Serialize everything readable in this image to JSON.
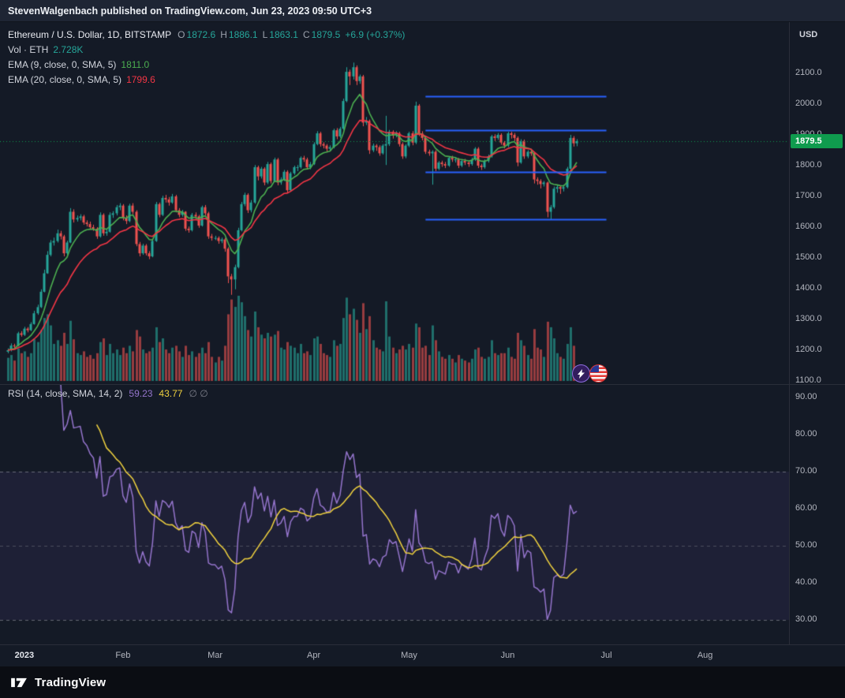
{
  "publish_bar": {
    "text": "StevenWalgenbach published on TradingView.com, Jun 23, 2023 09:50 UTC+3"
  },
  "footer": {
    "brand": "TradingView"
  },
  "current_price_label": "1879.5",
  "legend": {
    "symbol": "Ethereum / U.S. Dollar, 1D, BITSTAMP",
    "ohlc": {
      "o_label": "O",
      "o": "1872.6",
      "h_label": "H",
      "h": "1886.1",
      "l_label": "L",
      "l": "1863.1",
      "c_label": "C",
      "c": "1879.5",
      "change": "+6.9 (+0.37%)"
    },
    "volume": {
      "label": "Vol · ETH",
      "value": "2.728K"
    },
    "ema_fast": {
      "label": "EMA (9, close, 0, SMA, 5)",
      "value": "1811.0"
    },
    "ema_slow": {
      "label": "EMA (20, close, 0, SMA, 5)",
      "value": "1799.6"
    },
    "rsi": {
      "label": "RSI (14, close, SMA, 14, 2)",
      "value": "59.23",
      "sma_value": "43.77",
      "extra": "∅ ∅"
    }
  },
  "axis": {
    "currency": "USD",
    "price_ticks": [
      "2100.0",
      "2000.0",
      "1900.0",
      "1800.0",
      "1700.0",
      "1600.0",
      "1500.0",
      "1400.0",
      "1300.0",
      "1200.0",
      "1100.0"
    ],
    "rsi_ticks": [
      "90.00",
      "80.00",
      "70.00",
      "60.00",
      "50.00",
      "40.00",
      "30.00"
    ],
    "time": [
      {
        "label": "2023",
        "day": 5,
        "year": true
      },
      {
        "label": "Feb",
        "day": 35
      },
      {
        "label": "Mar",
        "day": 63
      },
      {
        "label": "Apr",
        "day": 93
      },
      {
        "label": "May",
        "day": 122
      },
      {
        "label": "Jun",
        "day": 152
      },
      {
        "label": "Jul",
        "day": 182
      },
      {
        "label": "Aug",
        "day": 212
      }
    ]
  },
  "colors": {
    "up": "#26a69a",
    "down": "#ef5350",
    "up_volume": "rgba(38,166,154,0.6)",
    "down_volume": "rgba(239,83,80,0.6)",
    "ema_fast": "#4caf50",
    "ema_slow": "#f23645",
    "level": "#2962ff",
    "price_line": "#0f9b4e",
    "badge_bg": "#0f9b4e",
    "rsi": "#9575cd",
    "rsi_sma": "#f0d23f",
    "rsi_band_fill": "rgba(126,87,194,0.10)",
    "rsi_band_line": "rgba(178,181,190,0.5)",
    "rsi_mid_line": "rgba(120,123,134,0.5)"
  },
  "chart_data": {
    "type": "candlestick",
    "title": "Ethereum / U.S. Dollar, 1D, BITSTAMP",
    "interval": "1D",
    "start_date": "2023-01-01",
    "ylim": [
      1100,
      2100
    ],
    "candle_format": [
      "open",
      "high",
      "low",
      "close",
      "volume_k"
    ],
    "candles": [
      [
        1195,
        1206,
        1190,
        1200,
        25
      ],
      [
        1200,
        1222,
        1196,
        1215,
        28
      ],
      [
        1215,
        1221,
        1208,
        1214,
        22
      ],
      [
        1214,
        1260,
        1212,
        1255,
        35
      ],
      [
        1255,
        1262,
        1244,
        1250,
        30
      ],
      [
        1250,
        1276,
        1246,
        1270,
        32
      ],
      [
        1270,
        1275,
        1258,
        1265,
        26
      ],
      [
        1265,
        1291,
        1262,
        1285,
        30
      ],
      [
        1285,
        1328,
        1283,
        1320,
        45
      ],
      [
        1320,
        1348,
        1315,
        1340,
        42
      ],
      [
        1340,
        1398,
        1337,
        1390,
        55
      ],
      [
        1390,
        1462,
        1388,
        1450,
        68
      ],
      [
        1450,
        1522,
        1448,
        1510,
        72
      ],
      [
        1510,
        1558,
        1505,
        1550,
        60
      ],
      [
        1550,
        1566,
        1540,
        1555,
        40
      ],
      [
        1555,
        1592,
        1550,
        1580,
        44
      ],
      [
        1580,
        1588,
        1560,
        1570,
        38
      ],
      [
        1570,
        1575,
        1505,
        1515,
        52
      ],
      [
        1515,
        1556,
        1510,
        1550,
        40
      ],
      [
        1550,
        1662,
        1548,
        1650,
        65
      ],
      [
        1650,
        1658,
        1615,
        1625,
        45
      ],
      [
        1625,
        1638,
        1618,
        1630,
        30
      ],
      [
        1630,
        1642,
        1622,
        1635,
        28
      ],
      [
        1635,
        1640,
        1608,
        1615,
        32
      ],
      [
        1615,
        1622,
        1602,
        1610,
        26
      ],
      [
        1610,
        1618,
        1592,
        1600,
        28
      ],
      [
        1600,
        1608,
        1588,
        1595,
        24
      ],
      [
        1595,
        1600,
        1562,
        1570,
        30
      ],
      [
        1570,
        1648,
        1566,
        1640,
        42
      ],
      [
        1640,
        1645,
        1572,
        1580,
        46
      ],
      [
        1580,
        1595,
        1572,
        1585,
        28
      ],
      [
        1585,
        1648,
        1582,
        1640,
        40
      ],
      [
        1640,
        1652,
        1630,
        1645,
        30
      ],
      [
        1645,
        1672,
        1638,
        1665,
        34
      ],
      [
        1665,
        1678,
        1655,
        1670,
        28
      ],
      [
        1670,
        1675,
        1622,
        1630,
        36
      ],
      [
        1630,
        1638,
        1610,
        1620,
        30
      ],
      [
        1620,
        1676,
        1616,
        1670,
        38
      ],
      [
        1670,
        1678,
        1642,
        1650,
        32
      ],
      [
        1650,
        1655,
        1538,
        1545,
        55
      ],
      [
        1545,
        1552,
        1505,
        1515,
        48
      ],
      [
        1515,
        1546,
        1510,
        1540,
        34
      ],
      [
        1540,
        1545,
        1508,
        1515,
        30
      ],
      [
        1515,
        1522,
        1496,
        1505,
        32
      ],
      [
        1505,
        1560,
        1502,
        1555,
        36
      ],
      [
        1555,
        1682,
        1552,
        1675,
        58
      ],
      [
        1675,
        1680,
        1632,
        1640,
        42
      ],
      [
        1640,
        1702,
        1636,
        1695,
        46
      ],
      [
        1695,
        1705,
        1680,
        1690,
        34
      ],
      [
        1690,
        1698,
        1670,
        1680,
        30
      ],
      [
        1680,
        1708,
        1676,
        1700,
        36
      ],
      [
        1700,
        1705,
        1648,
        1655,
        38
      ],
      [
        1655,
        1662,
        1632,
        1640,
        32
      ],
      [
        1640,
        1656,
        1634,
        1650,
        26
      ],
      [
        1650,
        1652,
        1588,
        1595,
        38
      ],
      [
        1595,
        1602,
        1582,
        1590,
        28
      ],
      [
        1590,
        1646,
        1586,
        1640,
        32
      ],
      [
        1640,
        1648,
        1626,
        1635,
        26
      ],
      [
        1635,
        1640,
        1598,
        1605,
        30
      ],
      [
        1605,
        1670,
        1602,
        1665,
        36
      ],
      [
        1665,
        1672,
        1638,
        1645,
        30
      ],
      [
        1645,
        1650,
        1562,
        1570,
        42
      ],
      [
        1570,
        1578,
        1556,
        1565,
        26
      ],
      [
        1565,
        1572,
        1558,
        1565,
        20
      ],
      [
        1565,
        1570,
        1546,
        1555,
        26
      ],
      [
        1555,
        1566,
        1548,
        1560,
        22
      ],
      [
        1560,
        1565,
        1520,
        1530,
        38
      ],
      [
        1530,
        1535,
        1418,
        1440,
        72
      ],
      [
        1440,
        1448,
        1380,
        1430,
        88
      ],
      [
        1430,
        1478,
        1398,
        1470,
        80
      ],
      [
        1470,
        1598,
        1466,
        1590,
        92
      ],
      [
        1590,
        1682,
        1586,
        1675,
        85
      ],
      [
        1675,
        1712,
        1668,
        1705,
        70
      ],
      [
        1705,
        1710,
        1646,
        1655,
        55
      ],
      [
        1655,
        1688,
        1648,
        1680,
        48
      ],
      [
        1680,
        1802,
        1676,
        1795,
        75
      ],
      [
        1795,
        1800,
        1752,
        1765,
        58
      ],
      [
        1765,
        1796,
        1758,
        1790,
        50
      ],
      [
        1790,
        1795,
        1736,
        1745,
        46
      ],
      [
        1745,
        1812,
        1740,
        1805,
        52
      ],
      [
        1805,
        1810,
        1742,
        1750,
        48
      ],
      [
        1750,
        1826,
        1746,
        1820,
        50
      ],
      [
        1820,
        1825,
        1736,
        1745,
        54
      ],
      [
        1745,
        1762,
        1738,
        1755,
        36
      ],
      [
        1755,
        1786,
        1750,
        1780,
        34
      ],
      [
        1780,
        1785,
        1712,
        1720,
        42
      ],
      [
        1720,
        1780,
        1716,
        1775,
        38
      ],
      [
        1775,
        1800,
        1770,
        1795,
        36
      ],
      [
        1795,
        1802,
        1782,
        1795,
        30
      ],
      [
        1795,
        1830,
        1790,
        1825,
        40
      ],
      [
        1825,
        1832,
        1812,
        1820,
        30
      ],
      [
        1820,
        1826,
        1788,
        1795,
        32
      ],
      [
        1795,
        1812,
        1788,
        1805,
        28
      ],
      [
        1805,
        1876,
        1802,
        1870,
        46
      ],
      [
        1870,
        1912,
        1866,
        1905,
        48
      ],
      [
        1905,
        1910,
        1862,
        1870,
        40
      ],
      [
        1870,
        1876,
        1856,
        1865,
        30
      ],
      [
        1865,
        1870,
        1846,
        1855,
        28
      ],
      [
        1855,
        1866,
        1848,
        1860,
        26
      ],
      [
        1860,
        1920,
        1856,
        1915,
        44
      ],
      [
        1915,
        1922,
        1886,
        1895,
        38
      ],
      [
        1895,
        1926,
        1890,
        1920,
        40
      ],
      [
        1920,
        2018,
        1916,
        2010,
        68
      ],
      [
        2010,
        2120,
        2006,
        2105,
        90
      ],
      [
        2105,
        2112,
        2062,
        2090,
        72
      ],
      [
        2090,
        2135,
        2080,
        2120,
        78
      ],
      [
        2120,
        2126,
        2062,
        2075,
        66
      ],
      [
        2075,
        2096,
        2066,
        2090,
        52
      ],
      [
        2090,
        2095,
        1928,
        1940,
        84
      ],
      [
        1940,
        1958,
        1932,
        1945,
        56
      ],
      [
        1945,
        1950,
        1838,
        1850,
        70
      ],
      [
        1850,
        1872,
        1844,
        1865,
        44
      ],
      [
        1865,
        1870,
        1848,
        1860,
        36
      ],
      [
        1860,
        1866,
        1832,
        1840,
        34
      ],
      [
        1840,
        1870,
        1836,
        1865,
        32
      ],
      [
        1865,
        1962,
        1802,
        1870,
        86
      ],
      [
        1870,
        1916,
        1864,
        1910,
        48
      ],
      [
        1910,
        1915,
        1888,
        1900,
        36
      ],
      [
        1900,
        1912,
        1892,
        1905,
        30
      ],
      [
        1905,
        1910,
        1862,
        1870,
        34
      ],
      [
        1870,
        1876,
        1822,
        1830,
        38
      ],
      [
        1830,
        1870,
        1824,
        1865,
        34
      ],
      [
        1865,
        1910,
        1860,
        1905,
        40
      ],
      [
        1905,
        1912,
        1866,
        1875,
        36
      ],
      [
        1875,
        2008,
        1870,
        1995,
        62
      ],
      [
        1995,
        2000,
        1896,
        1905,
        58
      ],
      [
        1905,
        1912,
        1882,
        1890,
        36
      ],
      [
        1890,
        1896,
        1838,
        1845,
        38
      ],
      [
        1845,
        1852,
        1832,
        1840,
        28
      ],
      [
        1840,
        1850,
        1738,
        1845,
        60
      ],
      [
        1845,
        1850,
        1782,
        1790,
        44
      ],
      [
        1790,
        1815,
        1785,
        1810,
        32
      ],
      [
        1810,
        1816,
        1796,
        1805,
        26
      ],
      [
        1805,
        1812,
        1792,
        1800,
        24
      ],
      [
        1800,
        1830,
        1796,
        1825,
        28
      ],
      [
        1825,
        1832,
        1812,
        1820,
        24
      ],
      [
        1820,
        1828,
        1810,
        1820,
        20
      ],
      [
        1820,
        1825,
        1792,
        1800,
        28
      ],
      [
        1800,
        1820,
        1795,
        1815,
        24
      ],
      [
        1815,
        1822,
        1802,
        1810,
        22
      ],
      [
        1810,
        1816,
        1796,
        1805,
        20
      ],
      [
        1805,
        1826,
        1800,
        1820,
        24
      ],
      [
        1820,
        1860,
        1815,
        1855,
        34
      ],
      [
        1855,
        1860,
        1792,
        1800,
        36
      ],
      [
        1800,
        1806,
        1786,
        1795,
        26
      ],
      [
        1795,
        1820,
        1790,
        1815,
        24
      ],
      [
        1815,
        1836,
        1810,
        1830,
        26
      ],
      [
        1830,
        1900,
        1826,
        1895,
        44
      ],
      [
        1895,
        1902,
        1880,
        1890,
        30
      ],
      [
        1890,
        1906,
        1884,
        1900,
        28
      ],
      [
        1900,
        1905,
        1868,
        1875,
        30
      ],
      [
        1875,
        1880,
        1856,
        1865,
        30
      ],
      [
        1865,
        1910,
        1860,
        1905,
        36
      ],
      [
        1905,
        1910,
        1888,
        1900,
        26
      ],
      [
        1900,
        1906,
        1880,
        1890,
        24
      ],
      [
        1890,
        1895,
        1798,
        1810,
        52
      ],
      [
        1810,
        1886,
        1806,
        1880,
        44
      ],
      [
        1880,
        1885,
        1822,
        1830,
        38
      ],
      [
        1830,
        1850,
        1824,
        1845,
        28
      ],
      [
        1845,
        1852,
        1832,
        1840,
        24
      ],
      [
        1840,
        1845,
        1742,
        1755,
        56
      ],
      [
        1755,
        1762,
        1738,
        1750,
        36
      ],
      [
        1750,
        1756,
        1726,
        1740,
        34
      ],
      [
        1740,
        1750,
        1732,
        1745,
        26
      ],
      [
        1745,
        1748,
        1632,
        1650,
        64
      ],
      [
        1650,
        1672,
        1625,
        1665,
        58
      ],
      [
        1665,
        1732,
        1660,
        1725,
        46
      ],
      [
        1725,
        1736,
        1712,
        1730,
        30
      ],
      [
        1730,
        1735,
        1708,
        1725,
        26
      ],
      [
        1725,
        1738,
        1716,
        1730,
        24
      ],
      [
        1730,
        1796,
        1726,
        1790,
        40
      ],
      [
        1790,
        1900,
        1786,
        1890,
        58
      ],
      [
        1890,
        1896,
        1862,
        1872.6,
        38
      ],
      [
        1872.6,
        1886.1,
        1863.1,
        1879.5,
        2.728
      ]
    ],
    "ema_fast_period": 9,
    "ema_slow_period": 20,
    "ema_fast_last": 1811.0,
    "ema_slow_last": 1799.6,
    "current_price": 1879.5,
    "volume_last": "2.728K",
    "levels": [
      {
        "price": 2025,
        "start_day": 127,
        "end_day": 182
      },
      {
        "price": 1915,
        "start_day": 127,
        "end_day": 182
      },
      {
        "price": 1780,
        "start_day": 127,
        "end_day": 182
      },
      {
        "price": 1625,
        "start_day": 127,
        "end_day": 182
      }
    ],
    "rsi": {
      "period": 14,
      "sma_period": 14,
      "band": [
        30,
        70
      ],
      "last": 59.23,
      "sma_last": 43.77
    }
  }
}
